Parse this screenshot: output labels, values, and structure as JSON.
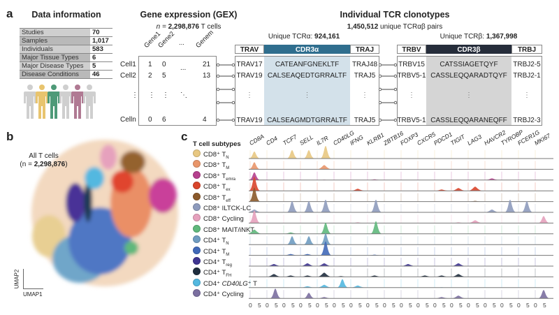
{
  "panel_a": {
    "letter": "a",
    "data_info": {
      "title": "Data information",
      "rows": [
        {
          "label": "Studies",
          "value": "70"
        },
        {
          "label": "Samples",
          "value": "1,017"
        },
        {
          "label": "Individuals",
          "value": "583"
        },
        {
          "label": "Major Tissue Types",
          "value": "6"
        },
        {
          "label": "Major Disease Types",
          "value": "5"
        },
        {
          "label": "Disease Conditions",
          "value": "46"
        }
      ],
      "people_colors": [
        "#cfcfcf",
        "#e8c46e",
        "#4e9a78",
        "#cfcfcf",
        "#b07a93",
        "#cfcfcf"
      ]
    },
    "gex": {
      "title": "Gene expression (GEX)",
      "n_prefix": "n = ",
      "n_value": "2,298,876",
      "n_suffix": " T cells",
      "genes": [
        "Gene1",
        "Gene2",
        "...",
        "Genem"
      ],
      "cells": [
        "Cell1",
        "Cell2",
        "⋮",
        "Celln"
      ],
      "matrix": [
        [
          "1",
          "0",
          "...",
          "21"
        ],
        [
          "2",
          "5",
          "",
          "13"
        ],
        [
          "⋮",
          "⋮",
          "⋱",
          ""
        ],
        [
          "0",
          "6",
          "",
          "4"
        ]
      ]
    },
    "tcr": {
      "title": "Individual TCR clonotypes",
      "pairs_value": "1,450,512",
      "pairs_suffix": " unique TCRαβ pairs",
      "alpha_label": "Unique TCRα: ",
      "alpha_value": "924,161",
      "beta_label": "Unique TCRβ: ",
      "beta_value": "1,367,998",
      "alpha_headers": [
        "TRAV",
        "CDR3α",
        "TRAJ"
      ],
      "beta_headers": [
        "TRBV",
        "CDR3β",
        "TRBJ"
      ],
      "alpha_rows": [
        [
          "TRAV17",
          "CATEANFGNEKLTF",
          "TRAJ48"
        ],
        [
          "TRAV19",
          "CALSEAQEDTGRRALTF",
          "TRAJ5"
        ],
        [
          "⋮",
          "⋮",
          "⋮"
        ],
        [
          "TRAV19",
          "CALSEAGMDTGRRALTF",
          "TRAJ5"
        ]
      ],
      "beta_rows": [
        [
          "TRBV15",
          "CATSSIAGETQYF",
          "TRBJ2-5"
        ],
        [
          "TRBV5-1",
          "CASSLEQQARADTQYF",
          "TRBJ2-1"
        ],
        [
          "⋮",
          "⋮",
          "⋮"
        ],
        [
          "TRBV5-1",
          "CASSLEQQARANEQFF",
          "TRBJ2-3"
        ]
      ],
      "colors": {
        "cdr3a": "#2f6e8e",
        "cdr3a_bg": "#d3e1ea",
        "cdr3b": "#262d3b",
        "cdr3b_bg": "#d5d5d5"
      }
    }
  },
  "panel_b": {
    "letter": "b",
    "label": "All T cells",
    "n_open": "(n = ",
    "n_value": "2,298,876",
    "n_close": ")",
    "xlabel": "UMAP1",
    "ylabel": "UMAP2"
  },
  "panel_c": {
    "letter": "c"
  },
  "chart_data": {
    "type": "area",
    "subtitle": "T cell subtypes",
    "genes": [
      "CD8A",
      "CD4",
      "TCF7",
      "SELL",
      "IL7R",
      "CD40LG",
      "IFNG",
      "KLRB1",
      "ZBTB16",
      "FOXP3",
      "CXCR5",
      "PDCD1",
      "TIGIT",
      "LAG3",
      "HAVCR2",
      "TYROBP",
      "FCER1G",
      "MKI67"
    ],
    "x_ticks": [
      "0",
      "5"
    ],
    "xlim": [
      0,
      5
    ],
    "subtypes": [
      {
        "name": "CD8⁺ T",
        "sub": "N",
        "color": "#e8c882",
        "peaks": [
          0.5,
          0,
          0.6,
          0.6,
          0.9,
          0,
          0,
          0,
          0,
          0,
          0,
          0,
          0,
          0,
          0,
          0,
          0,
          0
        ]
      },
      {
        "name": "CD8⁺ T",
        "sub": "M",
        "color": "#e9966a",
        "peaks": [
          0.5,
          0,
          0,
          0,
          0.3,
          0,
          0,
          0,
          0,
          0,
          0,
          0,
          0,
          0,
          0,
          0,
          0,
          0
        ]
      },
      {
        "name": "CD8⁺ T",
        "sub": "emra",
        "color": "#b5408e",
        "peaks": [
          0.55,
          0,
          0,
          0,
          0.03,
          0,
          0,
          0.05,
          0,
          0,
          0,
          0,
          0,
          0,
          0.12,
          0,
          0,
          0
        ]
      },
      {
        "name": "CD8⁺ T",
        "sub": "ex",
        "color": "#d9452b",
        "peaks": [
          1.0,
          0,
          0,
          0,
          0,
          0,
          0.15,
          0,
          0,
          0,
          0,
          0.1,
          0.2,
          0.3,
          0,
          0,
          0,
          0
        ]
      },
      {
        "name": "CD8⁺ T",
        "sub": "eff",
        "color": "#8b5a2b",
        "peaks": [
          1.0,
          0,
          0,
          0,
          0,
          0,
          0,
          0,
          0,
          0,
          0,
          0,
          0,
          0.05,
          0,
          0,
          0,
          0
        ]
      },
      {
        "name": "CD8⁺ ILTCK-LC",
        "sub": "",
        "color": "#8e9bbd",
        "peaks": [
          0.2,
          0,
          0.8,
          0.8,
          0.9,
          0,
          0,
          0.9,
          0,
          0,
          0,
          0,
          0,
          0,
          0.2,
          0.9,
          0.8,
          0
        ]
      },
      {
        "name": "CD8⁺ Cycling",
        "sub": "",
        "color": "#e6a1bd",
        "peaks": [
          0.9,
          0,
          0,
          0,
          0,
          0,
          0.05,
          0,
          0,
          0,
          0,
          0,
          0.05,
          0.2,
          0,
          0,
          0,
          0.5
        ]
      },
      {
        "name": "CD8⁺ MAIT/iNKT",
        "sub": "",
        "color": "#5fb87c",
        "peaks": [
          0.3,
          0,
          0.1,
          0,
          0.8,
          0,
          0,
          0.9,
          0,
          0,
          0,
          0,
          0,
          0,
          0,
          0,
          0,
          0
        ]
      },
      {
        "name": "CD4⁺ T",
        "sub": "N",
        "color": "#6f9cc1",
        "peaks": [
          0,
          0,
          0.6,
          0.6,
          0.8,
          0,
          0,
          0,
          0,
          0,
          0,
          0,
          0,
          0,
          0,
          0,
          0,
          0
        ]
      },
      {
        "name": "CD4⁺ T",
        "sub": "M",
        "color": "#4169b8",
        "peaks": [
          0,
          0,
          0.1,
          0.1,
          1.0,
          0,
          0,
          0.05,
          0,
          0,
          0,
          0,
          0,
          0,
          0,
          0,
          0,
          0
        ]
      },
      {
        "name": "CD4⁺ T",
        "sub": "reg",
        "color": "#3f3591",
        "peaks": [
          0,
          0.15,
          0,
          0.2,
          0.2,
          0,
          0,
          0,
          0,
          0.15,
          0,
          0,
          0.2,
          0,
          0,
          0,
          0,
          0
        ]
      },
      {
        "name": "CD4⁺ T",
        "sub": "FH",
        "color": "#1f2e3e",
        "peaks": [
          0,
          0.2,
          0.1,
          0.1,
          0.3,
          0.05,
          0,
          0.1,
          0,
          0,
          0.1,
          0.1,
          0.2,
          0,
          0,
          0,
          0,
          0
        ]
      },
      {
        "name": "CD4⁺ ",
        "sub": "",
        "italic": "CD40LG",
        "suffix": "⁺ T",
        "color": "#53b8e0",
        "peaks": [
          0,
          0,
          0,
          0.1,
          0.2,
          0.6,
          0.15,
          0,
          0,
          0,
          0,
          0.03,
          0,
          0,
          0,
          0,
          0,
          0
        ]
      },
      {
        "name": "CD4⁺ Cycling",
        "sub": "",
        "color": "#7b6fa0",
        "peaks": [
          0,
          0.7,
          0,
          0.4,
          0.1,
          0,
          0,
          0,
          0,
          0,
          0,
          0.1,
          0.2,
          0,
          0,
          0,
          0,
          0.6
        ]
      }
    ]
  }
}
